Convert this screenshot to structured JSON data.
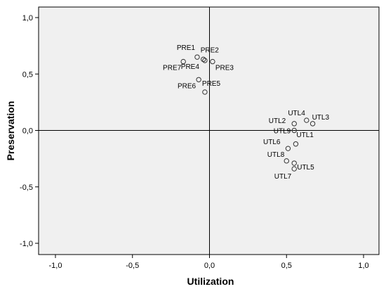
{
  "chart_data": {
    "type": "scatter",
    "xlabel": "Utilization",
    "ylabel": "Preservation",
    "xlim": [
      -1.0,
      1.0
    ],
    "ylim": [
      -1.0,
      1.0
    ],
    "x_ticks": [
      "-1,0",
      "-0,5",
      "0,0",
      "0,5",
      "1,0"
    ],
    "y_ticks": [
      "1,0",
      "0,5",
      "0,0",
      "-0,5",
      "-1,0"
    ],
    "grid": false,
    "reference_lines": {
      "x": 0,
      "y": 0
    },
    "colors": {
      "plot_background": "#f0f0f0",
      "marker_stroke": "#333333",
      "axis": "#000000"
    },
    "points": [
      {
        "label": "PRE1",
        "x": -0.08,
        "y": 0.65
      },
      {
        "label": "PRE2",
        "x": -0.04,
        "y": 0.63
      },
      {
        "label": "PRE3",
        "x": 0.02,
        "y": 0.61
      },
      {
        "label": "PRE4",
        "x": -0.03,
        "y": 0.62
      },
      {
        "label": "PRE5",
        "x": -0.03,
        "y": 0.34
      },
      {
        "label": "PRE6",
        "x": -0.07,
        "y": 0.45
      },
      {
        "label": "PRE7",
        "x": -0.17,
        "y": 0.61
      },
      {
        "label": "UTL1",
        "x": 0.56,
        "y": -0.12
      },
      {
        "label": "UTL2",
        "x": 0.55,
        "y": 0.06
      },
      {
        "label": "UTL3",
        "x": 0.67,
        "y": 0.06
      },
      {
        "label": "UTL4",
        "x": 0.63,
        "y": 0.09
      },
      {
        "label": "UTL5",
        "x": 0.55,
        "y": -0.29
      },
      {
        "label": "UTL6",
        "x": 0.51,
        "y": -0.16
      },
      {
        "label": "UTL7",
        "x": 0.55,
        "y": -0.34
      },
      {
        "label": "UTL8",
        "x": 0.5,
        "y": -0.27
      },
      {
        "label": "UTL9",
        "x": 0.55,
        "y": 0.0
      }
    ]
  }
}
